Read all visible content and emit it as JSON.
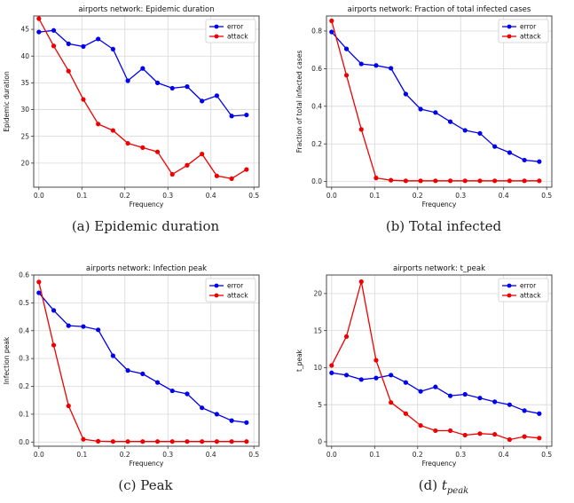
{
  "series_styles": [
    {
      "name": "error",
      "color": "#0000ee"
    },
    {
      "name": "attack",
      "color": "#ee0000"
    }
  ],
  "chart_data": [
    {
      "type": "line",
      "title": "airports network: Epidemic duration",
      "xlabel": "Frequency",
      "ylabel": "Epidemic duration",
      "xlim": [
        -0.012,
        0.512
      ],
      "ylim": [
        15.5,
        47.5
      ],
      "xticks": [
        "0.0",
        "0.1",
        "0.2",
        "0.3",
        "0.4",
        "0.5"
      ],
      "yticks": [
        "20",
        "25",
        "30",
        "35",
        "40",
        "45"
      ],
      "grid": true,
      "legend": "top-right",
      "x": [
        0.0,
        0.0345,
        0.069,
        0.1034,
        0.1379,
        0.1724,
        0.2069,
        0.2414,
        0.2759,
        0.3103,
        0.3448,
        0.3793,
        0.4138,
        0.4483,
        0.4828
      ],
      "series": [
        {
          "name": "error",
          "values": [
            44.5,
            44.8,
            42.3,
            41.8,
            43.2,
            41.3,
            35.4,
            37.7,
            35.0,
            34.0,
            34.3,
            31.6,
            32.6,
            28.8,
            29.0
          ]
        },
        {
          "name": "attack",
          "values": [
            47.0,
            41.9,
            37.2,
            31.9,
            27.3,
            26.1,
            23.7,
            22.9,
            22.1,
            17.9,
            19.6,
            21.7,
            17.6,
            17.1,
            18.8
          ]
        }
      ]
    },
    {
      "type": "line",
      "title": "airports network: Fraction of total infected cases",
      "xlabel": "Frequency",
      "ylabel": "Fraction of total infected cases",
      "xlim": [
        -0.012,
        0.512
      ],
      "ylim": [
        -0.03,
        0.88
      ],
      "xticks": [
        "0.0",
        "0.1",
        "0.2",
        "0.3",
        "0.4",
        "0.5"
      ],
      "yticks": [
        "0.0",
        "0.2",
        "0.4",
        "0.6",
        "0.8"
      ],
      "grid": true,
      "legend": "top-right",
      "x": [
        0.0,
        0.0345,
        0.069,
        0.1034,
        0.1379,
        0.1724,
        0.2069,
        0.2414,
        0.2759,
        0.3103,
        0.3448,
        0.3793,
        0.4138,
        0.4483,
        0.4828
      ],
      "series": [
        {
          "name": "error",
          "values": [
            0.795,
            0.705,
            0.625,
            0.617,
            0.602,
            0.465,
            0.385,
            0.367,
            0.318,
            0.272,
            0.256,
            0.186,
            0.154,
            0.114,
            0.106
          ]
        },
        {
          "name": "attack",
          "values": [
            0.854,
            0.565,
            0.277,
            0.019,
            0.007,
            0.004,
            0.004,
            0.004,
            0.004,
            0.004,
            0.004,
            0.004,
            0.004,
            0.004,
            0.004
          ]
        }
      ]
    },
    {
      "type": "line",
      "title": "airports network: Infection peak",
      "xlabel": "Frequency",
      "ylabel": "Infection peak",
      "xlim": [
        -0.012,
        0.512
      ],
      "ylim": [
        -0.015,
        0.6
      ],
      "xticks": [
        "0.0",
        "0.1",
        "0.2",
        "0.3",
        "0.4",
        "0.5"
      ],
      "yticks": [
        "0.0",
        "0.1",
        "0.2",
        "0.3",
        "0.4",
        "0.5",
        "0.6"
      ],
      "grid": true,
      "legend": "top-right",
      "x": [
        0.0,
        0.0345,
        0.069,
        0.1034,
        0.1379,
        0.1724,
        0.2069,
        0.2414,
        0.2759,
        0.3103,
        0.3448,
        0.3793,
        0.4138,
        0.4483,
        0.4828
      ],
      "series": [
        {
          "name": "error",
          "values": [
            0.536,
            0.473,
            0.418,
            0.415,
            0.403,
            0.31,
            0.257,
            0.245,
            0.214,
            0.184,
            0.173,
            0.123,
            0.1,
            0.077,
            0.07
          ]
        },
        {
          "name": "attack",
          "values": [
            0.575,
            0.348,
            0.13,
            0.01,
            0.003,
            0.002,
            0.002,
            0.002,
            0.002,
            0.002,
            0.002,
            0.002,
            0.002,
            0.002,
            0.002
          ]
        }
      ]
    },
    {
      "type": "line",
      "title": "airports network: t_peak",
      "xlabel": "Frequency",
      "ylabel": "t_peak",
      "xlim": [
        -0.012,
        0.512
      ],
      "ylim": [
        -0.6,
        22.5
      ],
      "xticks": [
        "0.0",
        "0.1",
        "0.2",
        "0.3",
        "0.4",
        "0.5"
      ],
      "yticks": [
        "0",
        "5",
        "10",
        "15",
        "20"
      ],
      "grid": true,
      "legend": "top-right",
      "x": [
        0.0,
        0.0345,
        0.069,
        0.1034,
        0.1379,
        0.1724,
        0.2069,
        0.2414,
        0.2759,
        0.3103,
        0.3448,
        0.3793,
        0.4138,
        0.4483,
        0.4828
      ],
      "series": [
        {
          "name": "error",
          "values": [
            9.3,
            9.0,
            8.4,
            8.6,
            9.0,
            8.0,
            6.8,
            7.4,
            6.2,
            6.4,
            5.9,
            5.4,
            5.0,
            4.2,
            3.8
          ]
        },
        {
          "name": "attack",
          "values": [
            10.3,
            14.2,
            21.6,
            11.0,
            5.3,
            3.8,
            2.2,
            1.5,
            1.5,
            0.9,
            1.1,
            1.0,
            0.3,
            0.7,
            0.5
          ]
        }
      ]
    }
  ],
  "captions": [
    {
      "label": "(a)",
      "text": "Epidemic duration"
    },
    {
      "label": "(b)",
      "text": "Total infected"
    },
    {
      "label": "(c)",
      "text": "Peak"
    },
    {
      "label": "(d)",
      "text": "t",
      "sub": "peak"
    }
  ]
}
